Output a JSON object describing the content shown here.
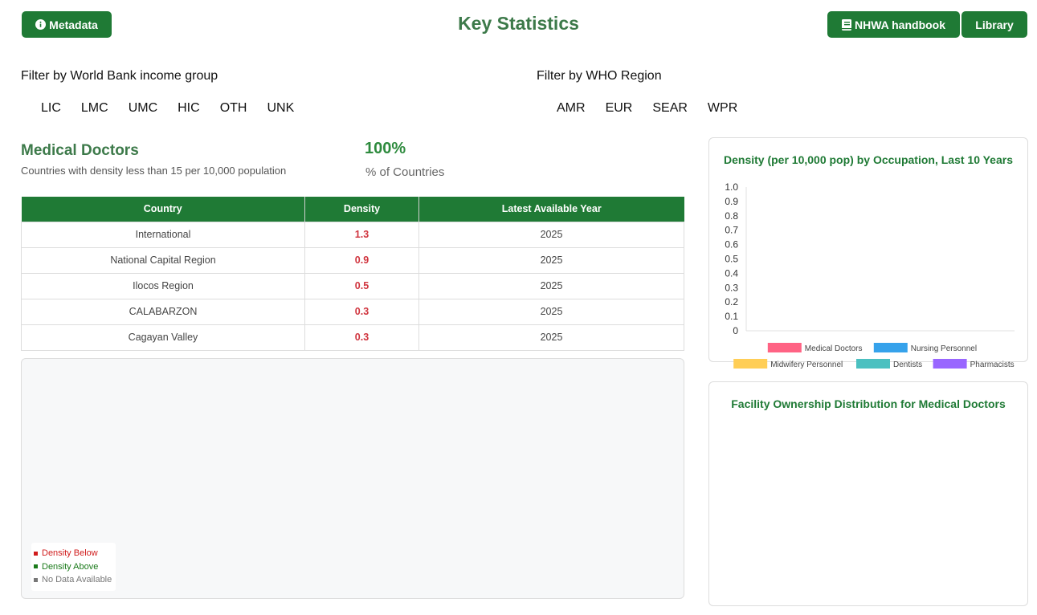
{
  "header": {
    "title": "Key Statistics",
    "metadata_label": "Metadata",
    "handbook_label": "NHWA handbook",
    "library_label": "Library"
  },
  "filters": {
    "income_label": "Filter by World Bank income group",
    "income_items": [
      "LIC",
      "LMC",
      "UMC",
      "HIC",
      "OTH",
      "UNK"
    ],
    "region_label": "Filter by WHO Region",
    "region_items": [
      "AMR",
      "EUR",
      "SEAR",
      "WPR"
    ]
  },
  "metric": {
    "title": "Medical Doctors",
    "subtitle": "Countries with density less than 15 per 10,000 population",
    "value": "100%",
    "unit": "% of Countries"
  },
  "table": {
    "headers": [
      "Country",
      "Density",
      "Latest Available Year"
    ],
    "rows": [
      {
        "country": "International",
        "density": "1.3",
        "year": "2025"
      },
      {
        "country": "National Capital Region",
        "density": "0.9",
        "year": "2025"
      },
      {
        "country": "Ilocos Region",
        "density": "0.5",
        "year": "2025"
      },
      {
        "country": "CALABARZON",
        "density": "0.3",
        "year": "2025"
      },
      {
        "country": "Cagayan Valley",
        "density": "0.3",
        "year": "2025"
      }
    ]
  },
  "map": {
    "legend": {
      "below": "Density Below",
      "above": "Density Above",
      "nodata": "No Data Available"
    },
    "colors": {
      "below": "#d01c1c",
      "above": "#1a7a1a",
      "nodata": "#777777"
    }
  },
  "colors": {
    "accent": "#1f7a35",
    "title": "#3d7a4a",
    "density_value": "#d0343e"
  },
  "chart_data": {
    "type": "bar",
    "title": "Density (per 10,000 pop) by Occupation, Last 10 Years",
    "categories": [],
    "ylim": [
      0,
      1.0
    ],
    "yticks": [
      "1.0",
      "0.9",
      "0.8",
      "0.7",
      "0.6",
      "0.5",
      "0.4",
      "0.3",
      "0.2",
      "0.1",
      "0"
    ],
    "legend_position": "bottom",
    "series": [
      {
        "name": "Medical Doctors",
        "color": "#ff6384",
        "values": []
      },
      {
        "name": "Nursing Personnel",
        "color": "#36a2eb",
        "values": []
      },
      {
        "name": "Midwifery Personnel",
        "color": "#ffce56",
        "values": []
      },
      {
        "name": "Dentists",
        "color": "#4bc0c0",
        "values": []
      },
      {
        "name": "Pharmacists",
        "color": "#9966ff",
        "values": []
      }
    ]
  },
  "facility_chart": {
    "title": "Facility Ownership Distribution for Medical Doctors"
  }
}
